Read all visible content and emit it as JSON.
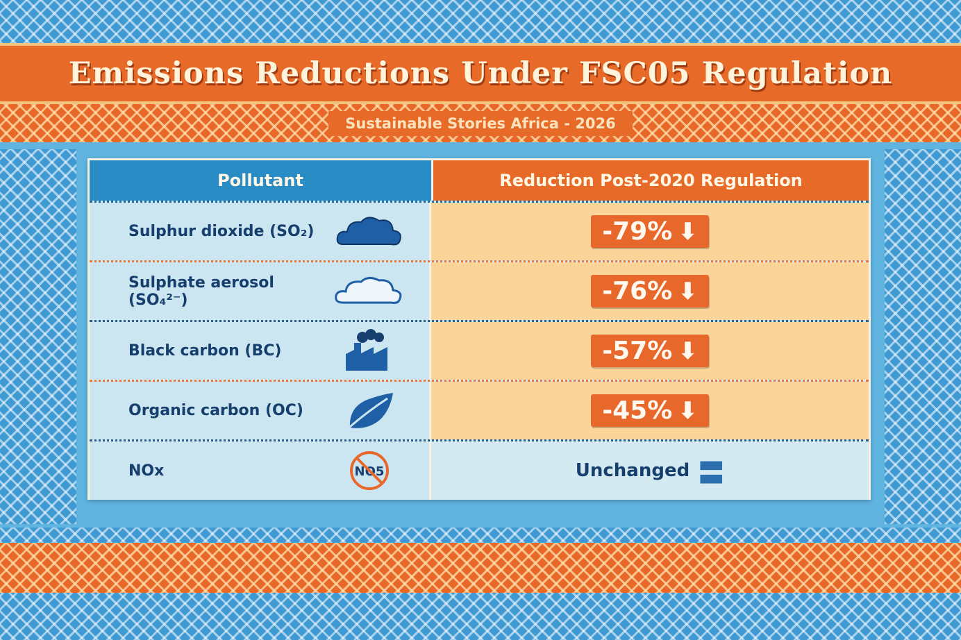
{
  "header": {
    "title": "Emissions Reductions Under FSC05 Regulation",
    "subtitle": "Sustainable Stories Africa - 2026"
  },
  "table": {
    "columns": [
      "Pollutant",
      "Reduction Post-2020 Regulation"
    ],
    "rows": [
      {
        "pollutant": "Sulphur dioxide (SO₂)",
        "value": "-79%",
        "icon": "dark-cloud-icon"
      },
      {
        "pollutant": "Sulphate aerosol (SO₄²⁻)",
        "value": "-76%",
        "icon": "light-cloud-icon"
      },
      {
        "pollutant": "Black carbon (BC)",
        "value": "-57%",
        "icon": "factory-icon"
      },
      {
        "pollutant": "Organic carbon (OC)",
        "value": "-45%",
        "icon": "leaf-icon"
      },
      {
        "pollutant": "NOx",
        "value": "Unchanged",
        "icon": "no-nox-icon",
        "icon_text": "NO5"
      }
    ]
  },
  "colors": {
    "orange": "#e86a28",
    "blue": "#2a8cc4",
    "navy": "#163f6e",
    "peach": "#fbd49a"
  }
}
